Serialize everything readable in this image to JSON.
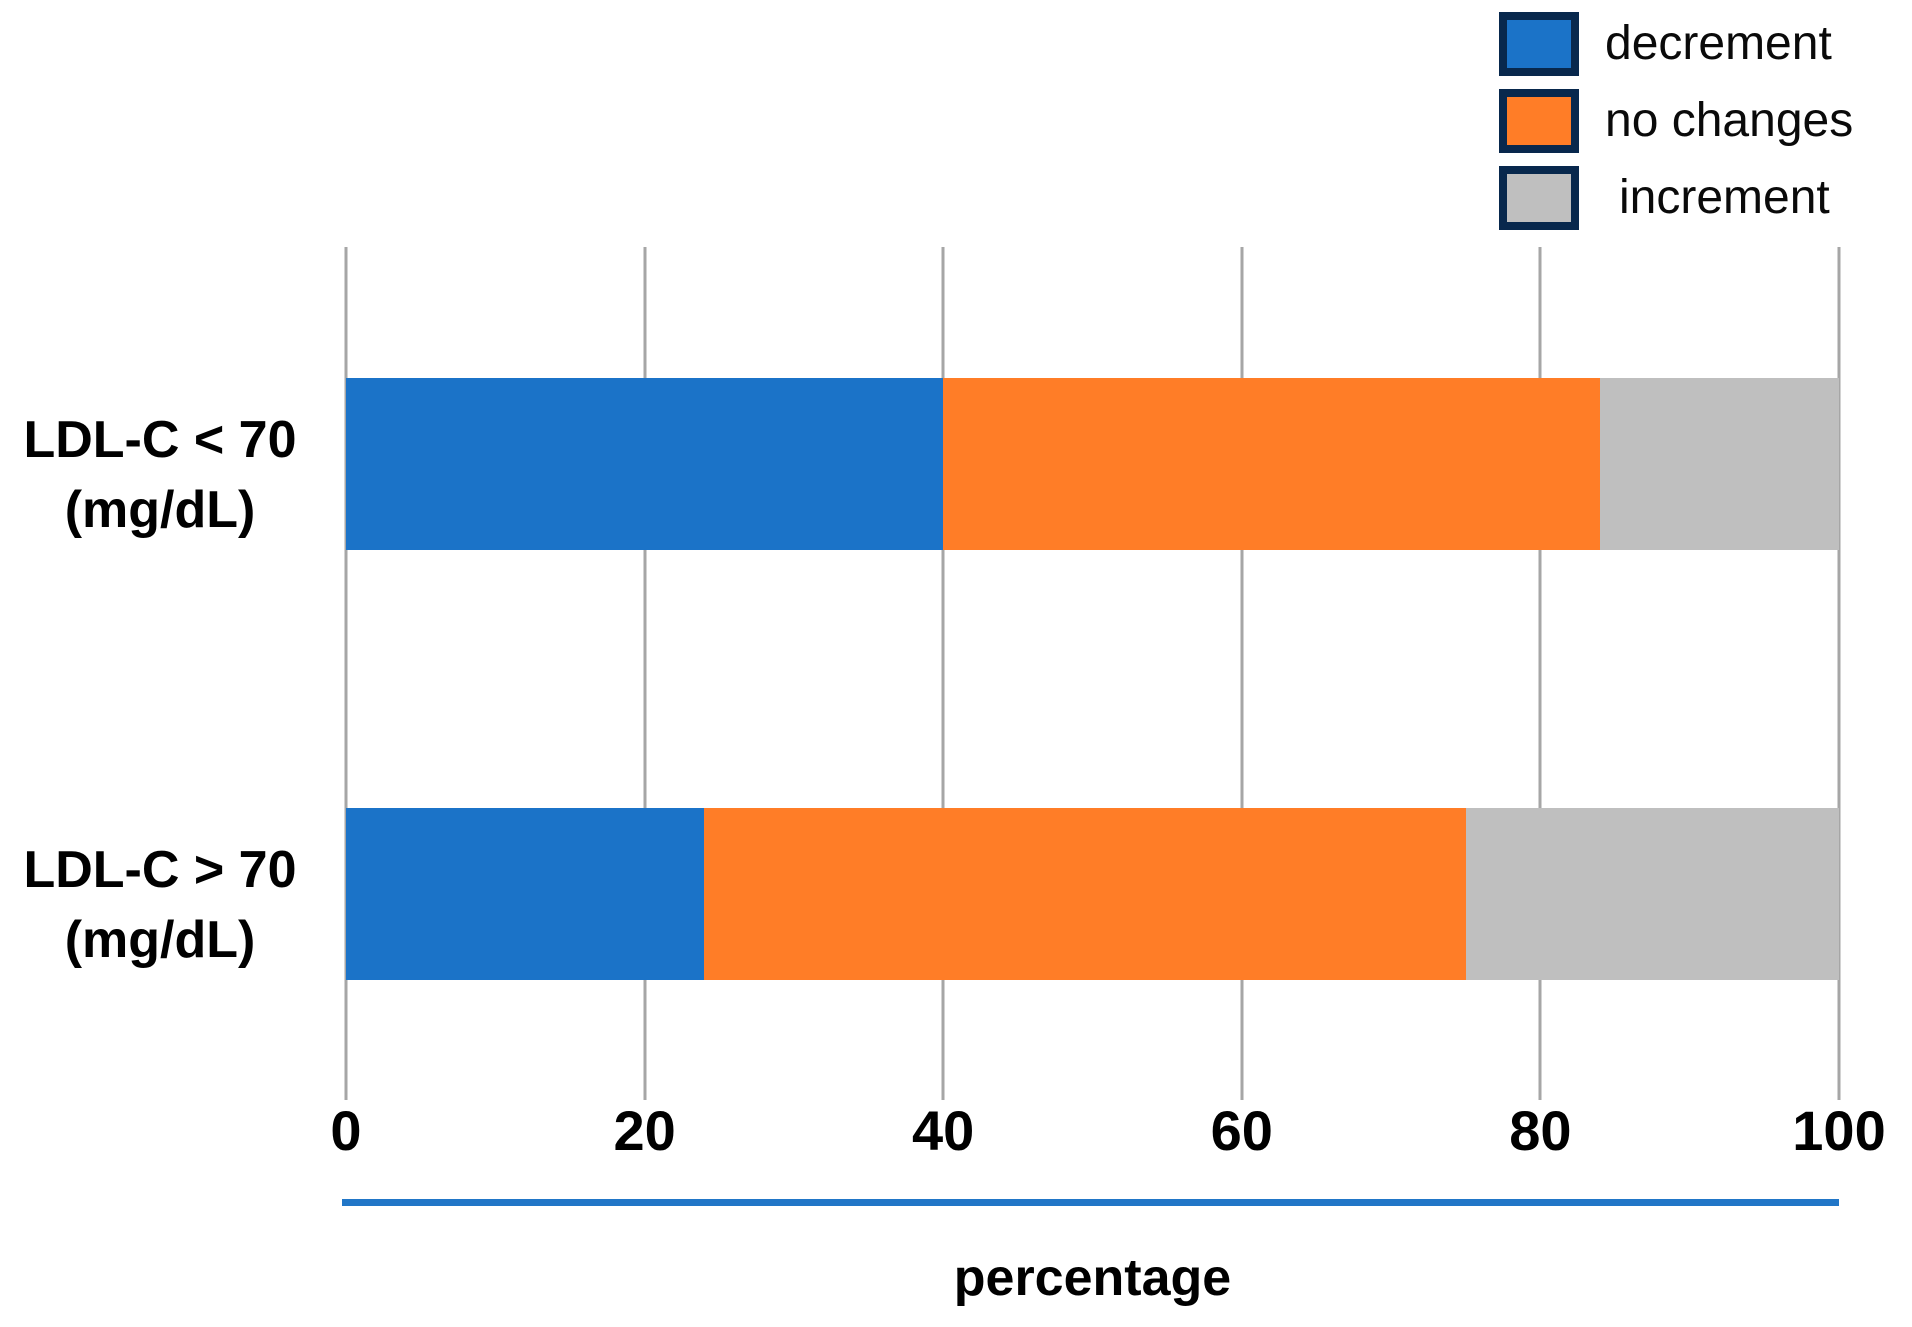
{
  "chart_data": {
    "type": "bar",
    "orientation": "horizontal",
    "stacked": true,
    "categories": [
      "LDL-C < 70 (mg/dL)",
      "LDL-C > 70 (mg/dL)"
    ],
    "category_lines": [
      {
        "line1": "LDL-C < 70",
        "line2": "(mg/dL)"
      },
      {
        "line1": "LDL-C > 70",
        "line2": "(mg/dL)"
      }
    ],
    "series": [
      {
        "name": "decrement",
        "color": "#1B73C8",
        "values": [
          40,
          24
        ]
      },
      {
        "name": "no changes",
        "color": "#FF7D27",
        "values": [
          44,
          51
        ]
      },
      {
        "name": "increment",
        "color": "#BFBFBF",
        "values": [
          16,
          25
        ]
      }
    ],
    "xlabel": "percentage",
    "xlim": [
      0,
      100
    ],
    "xticks": [
      0,
      20,
      40,
      60,
      80,
      100
    ],
    "grid": "vertical-gridlines",
    "legend_position": "top-right"
  },
  "legend": {
    "items": [
      {
        "label": "decrement",
        "color": "#1B73C8"
      },
      {
        "label": "no changes",
        "color": "#FF7D27"
      },
      {
        "label": "increment",
        "color": "#BFBFBF"
      }
    ],
    "swatch_border_color": "#08284D"
  },
  "axis": {
    "tick_labels": [
      "0",
      "20",
      "40",
      "60",
      "80",
      "100"
    ],
    "label": "percentage",
    "line_color": "#2176C7",
    "grid_color": "#A6A6A6",
    "text_color": "#000000"
  }
}
